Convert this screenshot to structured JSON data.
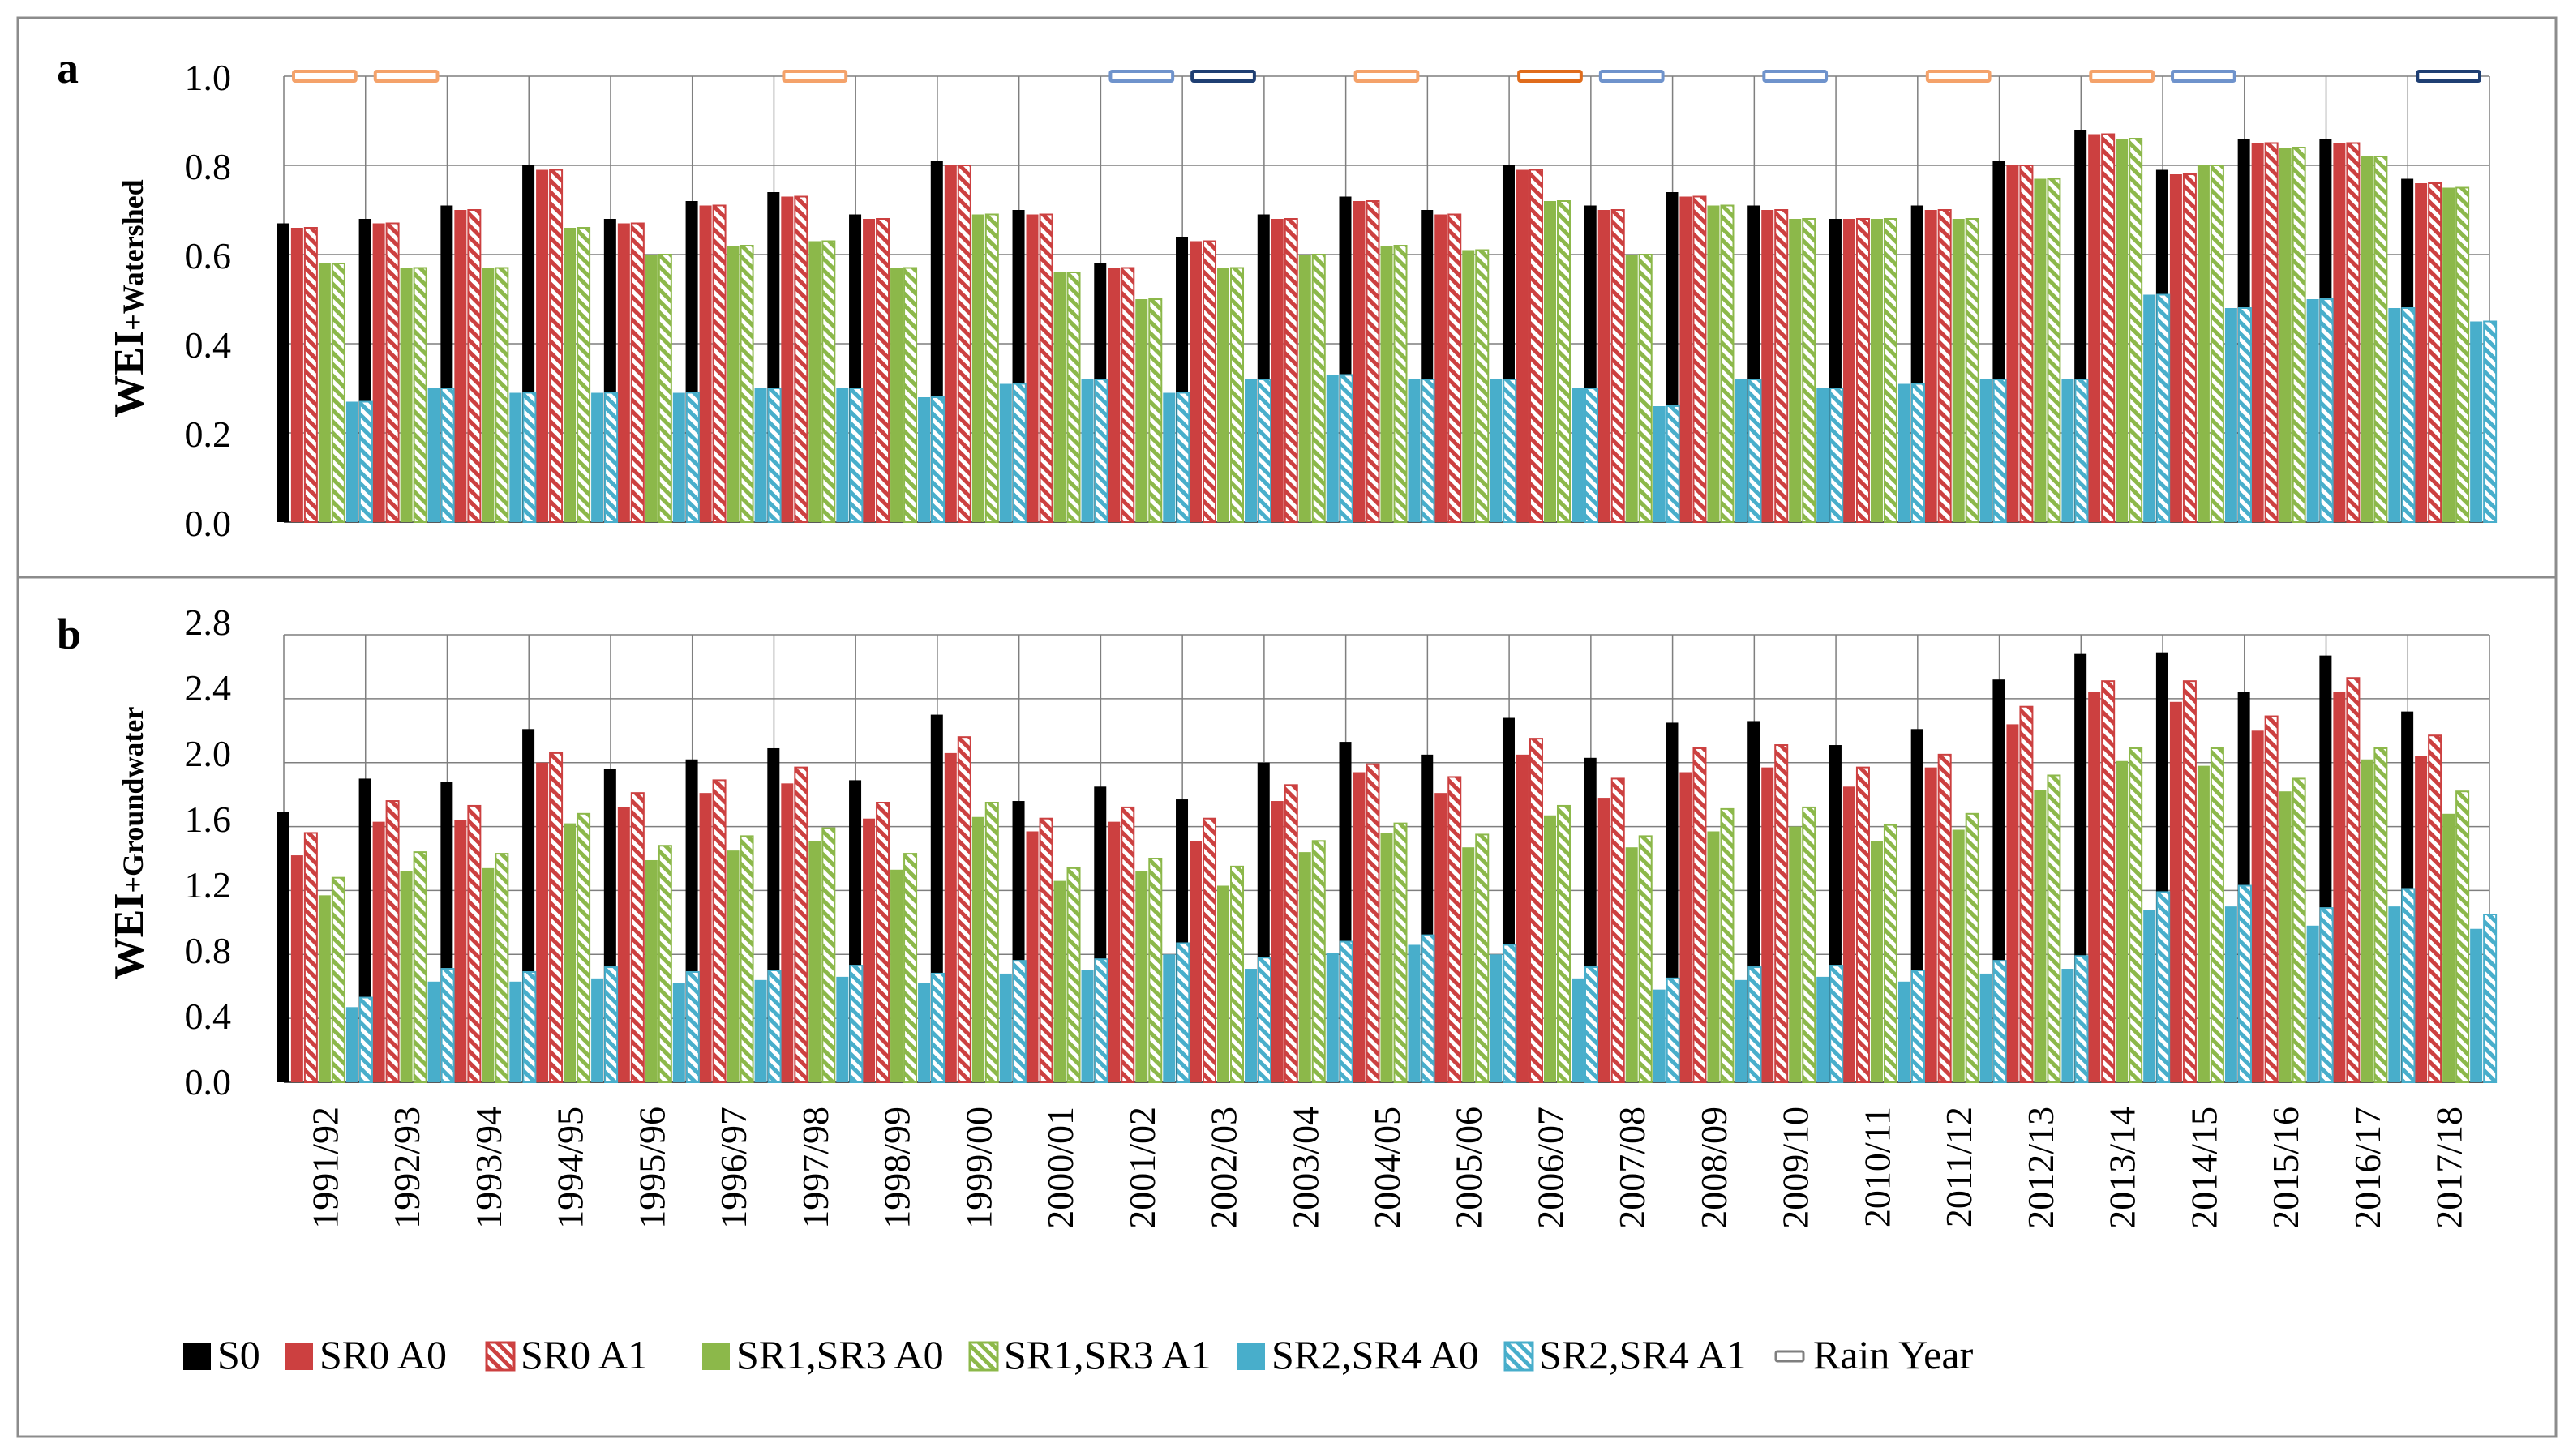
{
  "colors": {
    "S0": "#000000",
    "SR0": "#cc4040",
    "SR1": "#8cb84a",
    "SR2": "#48aecb",
    "rain_wet": "#f4a26a",
    "rain_wet_dark": "#e06c1c",
    "rain_dry": "#6f93cc",
    "rain_dry_dark": "#1f3f73",
    "grid": "#7f7f7f"
  },
  "legend": {
    "items": [
      {
        "label": "S0",
        "series": 0
      },
      {
        "label": "SR0 A0",
        "series": 1
      },
      {
        "label": "SR0 A1",
        "series": 2
      },
      {
        "label": "SR1,SR3 A0",
        "series": 3
      },
      {
        "label": "SR1,SR3 A1",
        "series": 4
      },
      {
        "label": "SR2,SR4 A0",
        "series": 5
      },
      {
        "label": "SR2,SR4 A1",
        "series": 6
      },
      {
        "label": "Rain Year",
        "series": -1
      }
    ]
  },
  "chart_data": [
    {
      "type": "bar",
      "panel_label": "a",
      "ylabel_main": "WEI",
      "ylabel_sub": "+Watershed",
      "ylim": [
        0,
        1.0
      ],
      "yticks": [
        "0.0",
        "0.2",
        "0.4",
        "0.6",
        "0.8",
        "1.0"
      ],
      "tick_step": 0.2,
      "categories": [
        "1991/92",
        "1992/93",
        "1993/94",
        "1994/95",
        "1995/96",
        "1996/97",
        "1997/98",
        "1998/99",
        "1999/00",
        "2000/01",
        "2001/02",
        "2002/03",
        "2003/04",
        "2004/05",
        "2005/06",
        "2006/07",
        "2007/08",
        "2008/09",
        "2009/10",
        "2010/11",
        "2011/12",
        "2012/13",
        "2013/14",
        "2014/15",
        "2015/16",
        "2016/17",
        "2017/18"
      ],
      "series": [
        {
          "name": "S0",
          "values": [
            0.67,
            0.68,
            0.71,
            0.8,
            0.68,
            0.72,
            0.74,
            0.69,
            0.81,
            0.7,
            0.58,
            0.64,
            0.69,
            0.73,
            0.7,
            0.8,
            0.71,
            0.74,
            0.71,
            0.68,
            0.71,
            0.81,
            0.88,
            0.79,
            0.86,
            0.86,
            0.77
          ]
        },
        {
          "name": "SR0 A0",
          "values": [
            0.66,
            0.67,
            0.7,
            0.79,
            0.67,
            0.71,
            0.73,
            0.68,
            0.8,
            0.69,
            0.57,
            0.63,
            0.68,
            0.72,
            0.69,
            0.79,
            0.7,
            0.73,
            0.7,
            0.68,
            0.7,
            0.8,
            0.87,
            0.78,
            0.85,
            0.85,
            0.76
          ]
        },
        {
          "name": "SR0 A1",
          "values": [
            0.66,
            0.67,
            0.7,
            0.79,
            0.67,
            0.71,
            0.73,
            0.68,
            0.8,
            0.69,
            0.57,
            0.63,
            0.68,
            0.72,
            0.69,
            0.79,
            0.7,
            0.73,
            0.7,
            0.68,
            0.7,
            0.8,
            0.87,
            0.78,
            0.85,
            0.85,
            0.76
          ]
        },
        {
          "name": "SR1,SR3 A0",
          "values": [
            0.58,
            0.57,
            0.57,
            0.66,
            0.6,
            0.62,
            0.63,
            0.57,
            0.69,
            0.56,
            0.5,
            0.57,
            0.6,
            0.62,
            0.61,
            0.72,
            0.6,
            0.71,
            0.68,
            0.68,
            0.68,
            0.77,
            0.86,
            0.8,
            0.84,
            0.82,
            0.75
          ]
        },
        {
          "name": "SR1,SR3 A1",
          "values": [
            0.58,
            0.57,
            0.57,
            0.66,
            0.6,
            0.62,
            0.63,
            0.57,
            0.69,
            0.56,
            0.5,
            0.57,
            0.6,
            0.62,
            0.61,
            0.72,
            0.6,
            0.71,
            0.68,
            0.68,
            0.68,
            0.77,
            0.86,
            0.8,
            0.84,
            0.82,
            0.75
          ]
        },
        {
          "name": "SR2,SR4 A0",
          "values": [
            0.27,
            0.3,
            0.29,
            0.29,
            0.29,
            0.3,
            0.3,
            0.28,
            0.31,
            0.32,
            0.29,
            0.32,
            0.33,
            0.32,
            0.32,
            0.3,
            0.26,
            0.32,
            0.3,
            0.31,
            0.32,
            0.32,
            0.51,
            0.48,
            0.5,
            0.48,
            0.45
          ]
        },
        {
          "name": "SR2,SR4 A1",
          "values": [
            0.27,
            0.3,
            0.29,
            0.29,
            0.29,
            0.3,
            0.3,
            0.28,
            0.31,
            0.32,
            0.29,
            0.32,
            0.33,
            0.32,
            0.32,
            0.3,
            0.26,
            0.32,
            0.3,
            0.31,
            0.32,
            0.32,
            0.51,
            0.48,
            0.5,
            0.48,
            0.45
          ]
        }
      ],
      "rain_year": [
        "wet",
        "wet",
        null,
        null,
        null,
        null,
        "wet",
        null,
        null,
        null,
        "dry",
        "very_dry",
        null,
        "wet",
        null,
        "very_wet",
        "dry",
        null,
        "dry",
        null,
        "wet",
        null,
        "wet",
        "dry",
        null,
        null,
        "very_dry"
      ]
    },
    {
      "type": "bar",
      "panel_label": "b",
      "ylabel_main": "WEI",
      "ylabel_sub": "+Groundwater",
      "ylim": [
        0,
        2.8
      ],
      "yticks": [
        "0.0",
        "0.4",
        "0.8",
        "1.2",
        "1.6",
        "2.0",
        "2.4",
        "2.8"
      ],
      "tick_step": 0.4,
      "categories": [
        "1991/92",
        "1992/93",
        "1993/94",
        "1994/95",
        "1995/96",
        "1996/97",
        "1997/98",
        "1998/99",
        "1999/00",
        "2000/01",
        "2001/02",
        "2002/03",
        "2003/04",
        "2004/05",
        "2005/06",
        "2006/07",
        "2007/08",
        "2008/09",
        "2009/10",
        "2010/11",
        "2011/12",
        "2012/13",
        "2013/14",
        "2014/15",
        "2015/16",
        "2016/17",
        "2017/18"
      ],
      "series": [
        {
          "name": "S0",
          "values": [
            1.69,
            1.9,
            1.88,
            2.21,
            1.96,
            2.02,
            2.09,
            1.89,
            2.3,
            1.76,
            1.85,
            1.77,
            2.0,
            2.13,
            2.05,
            2.28,
            2.03,
            2.25,
            2.26,
            2.11,
            2.21,
            2.52,
            2.68,
            2.69,
            2.44,
            2.67,
            2.32
          ]
        },
        {
          "name": "SR0 A0",
          "values": [
            1.42,
            1.63,
            1.64,
            2.0,
            1.72,
            1.81,
            1.87,
            1.65,
            2.06,
            1.57,
            1.63,
            1.51,
            1.76,
            1.94,
            1.81,
            2.05,
            1.78,
            1.94,
            1.97,
            1.85,
            1.97,
            2.24,
            2.44,
            2.38,
            2.2,
            2.44,
            2.04
          ]
        },
        {
          "name": "SR0 A1",
          "values": [
            1.56,
            1.76,
            1.73,
            2.06,
            1.81,
            1.89,
            1.97,
            1.75,
            2.16,
            1.65,
            1.72,
            1.65,
            1.86,
            1.99,
            1.91,
            2.15,
            1.9,
            2.09,
            2.11,
            1.97,
            2.05,
            2.35,
            2.51,
            2.51,
            2.29,
            2.53,
            2.17
          ]
        },
        {
          "name": "SR1,SR3 A0",
          "values": [
            1.17,
            1.32,
            1.34,
            1.62,
            1.39,
            1.45,
            1.51,
            1.33,
            1.66,
            1.26,
            1.32,
            1.23,
            1.44,
            1.56,
            1.47,
            1.67,
            1.47,
            1.57,
            1.6,
            1.51,
            1.58,
            1.83,
            2.01,
            1.98,
            1.82,
            2.02,
            1.68
          ]
        },
        {
          "name": "SR1,SR3 A1",
          "values": [
            1.28,
            1.44,
            1.43,
            1.68,
            1.48,
            1.54,
            1.59,
            1.43,
            1.75,
            1.34,
            1.4,
            1.35,
            1.51,
            1.62,
            1.55,
            1.73,
            1.54,
            1.71,
            1.72,
            1.61,
            1.68,
            1.92,
            2.09,
            2.09,
            1.9,
            2.09,
            1.82
          ]
        },
        {
          "name": "SR2,SR4 A0",
          "values": [
            0.47,
            0.63,
            0.63,
            0.65,
            0.62,
            0.64,
            0.66,
            0.62,
            0.68,
            0.7,
            0.8,
            0.71,
            0.81,
            0.86,
            0.8,
            0.65,
            0.58,
            0.64,
            0.66,
            0.63,
            0.68,
            0.71,
            1.08,
            1.1,
            0.98,
            1.1,
            0.96
          ]
        },
        {
          "name": "SR2,SR4 A1",
          "values": [
            0.53,
            0.71,
            0.69,
            0.72,
            0.69,
            0.7,
            0.73,
            0.68,
            0.76,
            0.77,
            0.87,
            0.78,
            0.88,
            0.92,
            0.86,
            0.72,
            0.65,
            0.72,
            0.73,
            0.7,
            0.76,
            0.79,
            1.19,
            1.23,
            1.09,
            1.21,
            1.05
          ]
        }
      ]
    }
  ]
}
